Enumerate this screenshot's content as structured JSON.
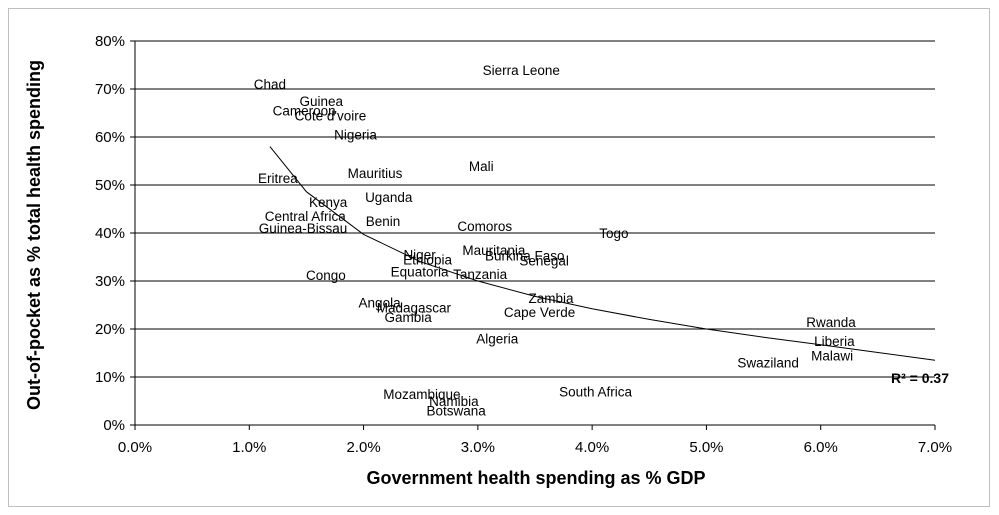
{
  "chart_data": {
    "type": "scatter",
    "title": "",
    "xlabel": "Government health spending as % GDP",
    "ylabel": "Out-of-pocket as % total health spending",
    "xlim": [
      0,
      0.07
    ],
    "ylim": [
      0,
      0.8
    ],
    "xticks": [
      "0.0%",
      "1.0%",
      "2.0%",
      "3.0%",
      "4.0%",
      "5.0%",
      "6.0%",
      "7.0%"
    ],
    "yticks": [
      "0%",
      "10%",
      "20%",
      "30%",
      "40%",
      "50%",
      "60%",
      "70%",
      "80%"
    ],
    "grid": "horizontal",
    "points": [
      {
        "label": "Sierra Leone",
        "x": 0.0338,
        "y": 0.74
      },
      {
        "label": "Chad",
        "x": 0.0118,
        "y": 0.71
      },
      {
        "label": "Guinea",
        "x": 0.0163,
        "y": 0.675
      },
      {
        "label": "Cameroon",
        "x": 0.0148,
        "y": 0.655
      },
      {
        "label": "Cote d'voire",
        "x": 0.0171,
        "y": 0.645
      },
      {
        "label": "Nigeria",
        "x": 0.0193,
        "y": 0.605
      },
      {
        "label": "Mali",
        "x": 0.0303,
        "y": 0.54
      },
      {
        "label": "Mauritius",
        "x": 0.021,
        "y": 0.525
      },
      {
        "label": "Eritrea",
        "x": 0.0125,
        "y": 0.515
      },
      {
        "label": "Uganda",
        "x": 0.0222,
        "y": 0.475
      },
      {
        "label": "Kenya",
        "x": 0.0169,
        "y": 0.465
      },
      {
        "label": "Central Africa",
        "x": 0.0149,
        "y": 0.435
      },
      {
        "label": "Benin",
        "x": 0.0217,
        "y": 0.425
      },
      {
        "label": "Comoros",
        "x": 0.0306,
        "y": 0.415
      },
      {
        "label": "Guinea-Bissau",
        "x": 0.0147,
        "y": 0.41
      },
      {
        "label": "Togo",
        "x": 0.0419,
        "y": 0.4
      },
      {
        "label": "Mauritania",
        "x": 0.0314,
        "y": 0.365
      },
      {
        "label": "Niger",
        "x": 0.0249,
        "y": 0.355
      },
      {
        "label": "Burkina Faso",
        "x": 0.0341,
        "y": 0.353
      },
      {
        "label": "Ethiopia",
        "x": 0.0256,
        "y": 0.345
      },
      {
        "label": "Senegal",
        "x": 0.0358,
        "y": 0.343
      },
      {
        "label": "Equatoria",
        "x": 0.0249,
        "y": 0.32
      },
      {
        "label": "Tanzania",
        "x": 0.0302,
        "y": 0.315
      },
      {
        "label": "Congo",
        "x": 0.0167,
        "y": 0.313
      },
      {
        "label": "Zambia",
        "x": 0.0364,
        "y": 0.265
      },
      {
        "label": "Angola",
        "x": 0.0214,
        "y": 0.255
      },
      {
        "label": "Madagascar",
        "x": 0.0244,
        "y": 0.245
      },
      {
        "label": "Cape Verde",
        "x": 0.0354,
        "y": 0.235
      },
      {
        "label": "Gambia",
        "x": 0.0239,
        "y": 0.225
      },
      {
        "label": "Rwanda",
        "x": 0.0609,
        "y": 0.215
      },
      {
        "label": "Algeria",
        "x": 0.0317,
        "y": 0.18
      },
      {
        "label": "Liberia",
        "x": 0.0612,
        "y": 0.175
      },
      {
        "label": "Malawi",
        "x": 0.061,
        "y": 0.145
      },
      {
        "label": "Swaziland",
        "x": 0.0554,
        "y": 0.13
      },
      {
        "label": "South Africa",
        "x": 0.0403,
        "y": 0.07
      },
      {
        "label": "Mozambique",
        "x": 0.0251,
        "y": 0.065
      },
      {
        "label": "Namibia",
        "x": 0.0279,
        "y": 0.05
      },
      {
        "label": "Botswana",
        "x": 0.0281,
        "y": 0.03
      }
    ],
    "trendline": {
      "type": "power",
      "label": "R² = 0.37",
      "x": [
        0.0118,
        0.015,
        0.02,
        0.025,
        0.03,
        0.035,
        0.04,
        0.045,
        0.05,
        0.055,
        0.06,
        0.065,
        0.07
      ],
      "y": [
        0.58,
        0.486,
        0.397,
        0.34,
        0.3,
        0.268,
        0.242,
        0.22,
        0.2,
        0.183,
        0.167,
        0.151,
        0.135
      ]
    }
  }
}
